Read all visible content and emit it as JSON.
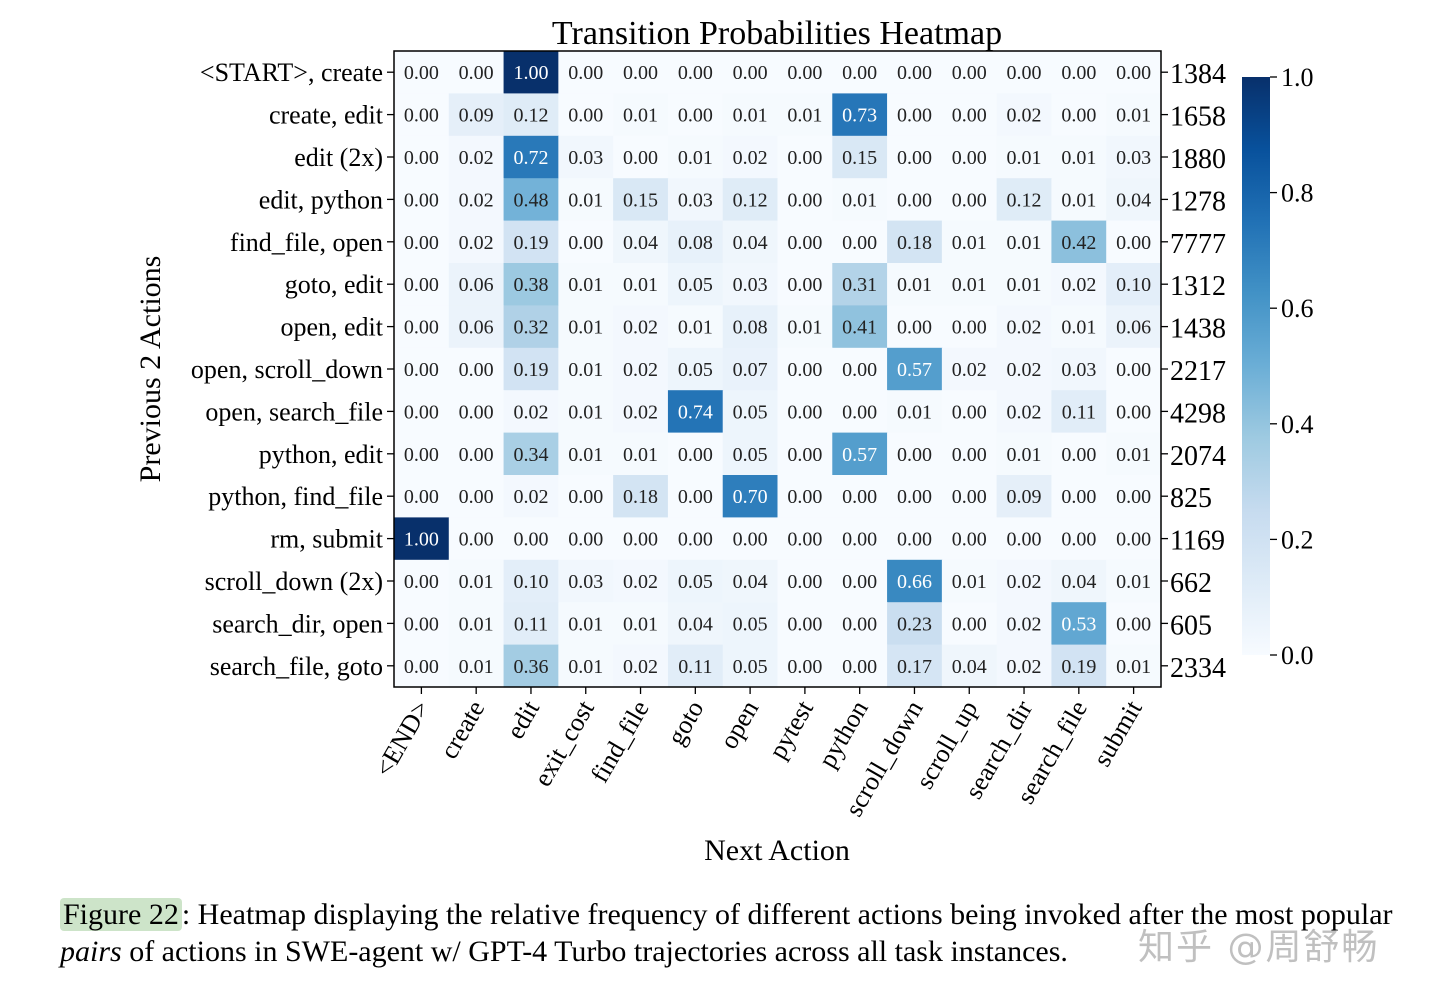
{
  "chart_data": {
    "type": "heatmap",
    "title": "Transition Probabilities Heatmap",
    "xlabel": "Next Action",
    "ylabel": "Previous 2 Actions",
    "x_categories": [
      "<END>",
      "create",
      "edit",
      "exit_cost",
      "find_file",
      "goto",
      "open",
      "pytest",
      "python",
      "scroll_down",
      "scroll_up",
      "search_dir",
      "search_file",
      "submit"
    ],
    "y_categories": [
      "<START>, create",
      "create, edit",
      "edit (2x)",
      "edit, python",
      "find_file, open",
      "goto, edit",
      "open, edit",
      "open, scroll_down",
      "open, search_file",
      "python, edit",
      "python, find_file",
      "rm, submit",
      "scroll_down (2x)",
      "search_dir, open",
      "search_file, goto"
    ],
    "row_counts": [
      "1384",
      "1658",
      "1880",
      "1278",
      "7777",
      "1312",
      "1438",
      "2217",
      "4298",
      "2074",
      "825",
      "1169",
      "662",
      "605",
      "2334"
    ],
    "values": [
      [
        "0.00",
        "0.00",
        "1.00",
        "0.00",
        "0.00",
        "0.00",
        "0.00",
        "0.00",
        "0.00",
        "0.00",
        "0.00",
        "0.00",
        "0.00",
        "0.00"
      ],
      [
        "0.00",
        "0.09",
        "0.12",
        "0.00",
        "0.01",
        "0.00",
        "0.01",
        "0.01",
        "0.73",
        "0.00",
        "0.00",
        "0.02",
        "0.00",
        "0.01"
      ],
      [
        "0.00",
        "0.02",
        "0.72",
        "0.03",
        "0.00",
        "0.01",
        "0.02",
        "0.00",
        "0.15",
        "0.00",
        "0.00",
        "0.01",
        "0.01",
        "0.03"
      ],
      [
        "0.00",
        "0.02",
        "0.48",
        "0.01",
        "0.15",
        "0.03",
        "0.12",
        "0.00",
        "0.01",
        "0.00",
        "0.00",
        "0.12",
        "0.01",
        "0.04"
      ],
      [
        "0.00",
        "0.02",
        "0.19",
        "0.00",
        "0.04",
        "0.08",
        "0.04",
        "0.00",
        "0.00",
        "0.18",
        "0.01",
        "0.01",
        "0.42",
        "0.00"
      ],
      [
        "0.00",
        "0.06",
        "0.38",
        "0.01",
        "0.01",
        "0.05",
        "0.03",
        "0.00",
        "0.31",
        "0.01",
        "0.01",
        "0.01",
        "0.02",
        "0.10"
      ],
      [
        "0.00",
        "0.06",
        "0.32",
        "0.01",
        "0.02",
        "0.01",
        "0.08",
        "0.01",
        "0.41",
        "0.00",
        "0.00",
        "0.02",
        "0.01",
        "0.06"
      ],
      [
        "0.00",
        "0.00",
        "0.19",
        "0.01",
        "0.02",
        "0.05",
        "0.07",
        "0.00",
        "0.00",
        "0.57",
        "0.02",
        "0.02",
        "0.03",
        "0.00"
      ],
      [
        "0.00",
        "0.00",
        "0.02",
        "0.01",
        "0.02",
        "0.74",
        "0.05",
        "0.00",
        "0.00",
        "0.01",
        "0.00",
        "0.02",
        "0.11",
        "0.00"
      ],
      [
        "0.00",
        "0.00",
        "0.34",
        "0.01",
        "0.01",
        "0.00",
        "0.05",
        "0.00",
        "0.57",
        "0.00",
        "0.00",
        "0.01",
        "0.00",
        "0.01"
      ],
      [
        "0.00",
        "0.00",
        "0.02",
        "0.00",
        "0.18",
        "0.00",
        "0.70",
        "0.00",
        "0.00",
        "0.00",
        "0.00",
        "0.09",
        "0.00",
        "0.00"
      ],
      [
        "1.00",
        "0.00",
        "0.00",
        "0.00",
        "0.00",
        "0.00",
        "0.00",
        "0.00",
        "0.00",
        "0.00",
        "0.00",
        "0.00",
        "0.00",
        "0.00"
      ],
      [
        "0.00",
        "0.01",
        "0.10",
        "0.03",
        "0.02",
        "0.05",
        "0.04",
        "0.00",
        "0.00",
        "0.66",
        "0.01",
        "0.02",
        "0.04",
        "0.01"
      ],
      [
        "0.00",
        "0.01",
        "0.11",
        "0.01",
        "0.01",
        "0.04",
        "0.05",
        "0.00",
        "0.00",
        "0.23",
        "0.00",
        "0.02",
        "0.53",
        "0.00"
      ],
      [
        "0.00",
        "0.01",
        "0.36",
        "0.01",
        "0.02",
        "0.11",
        "0.05",
        "0.00",
        "0.00",
        "0.17",
        "0.04",
        "0.02",
        "0.19",
        "0.01"
      ]
    ],
    "colorbar": {
      "range": [
        0,
        1
      ],
      "ticks": [
        "0.0",
        "0.2",
        "0.4",
        "0.6",
        "0.8",
        "1.0"
      ],
      "colormap": "Blues"
    }
  },
  "caption": {
    "figure_ref": "Figure 22",
    "text_1": ": Heatmap displaying the relative frequency of different actions being invoked after the most popular ",
    "emphasis": "pairs",
    "text_2": " of actions in SWE-agent w/ GPT-4 Turbo trajectories across all task instances."
  },
  "watermark": "知乎 @周舒畅"
}
